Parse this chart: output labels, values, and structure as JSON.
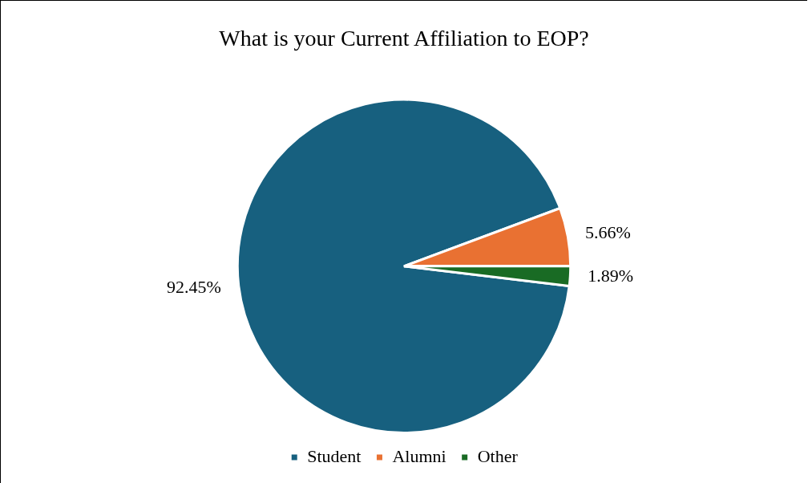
{
  "chart_data": {
    "type": "pie",
    "title": "What is your Current Affiliation to EOP?",
    "categories": [
      "Student",
      "Alumni",
      "Other"
    ],
    "values": [
      92.45,
      5.66,
      1.89
    ],
    "colors": [
      "#17607f",
      "#e97132",
      "#196b24"
    ],
    "value_labels": [
      "92.45%",
      "5.66%",
      "1.89%"
    ],
    "legend": "bottom"
  }
}
